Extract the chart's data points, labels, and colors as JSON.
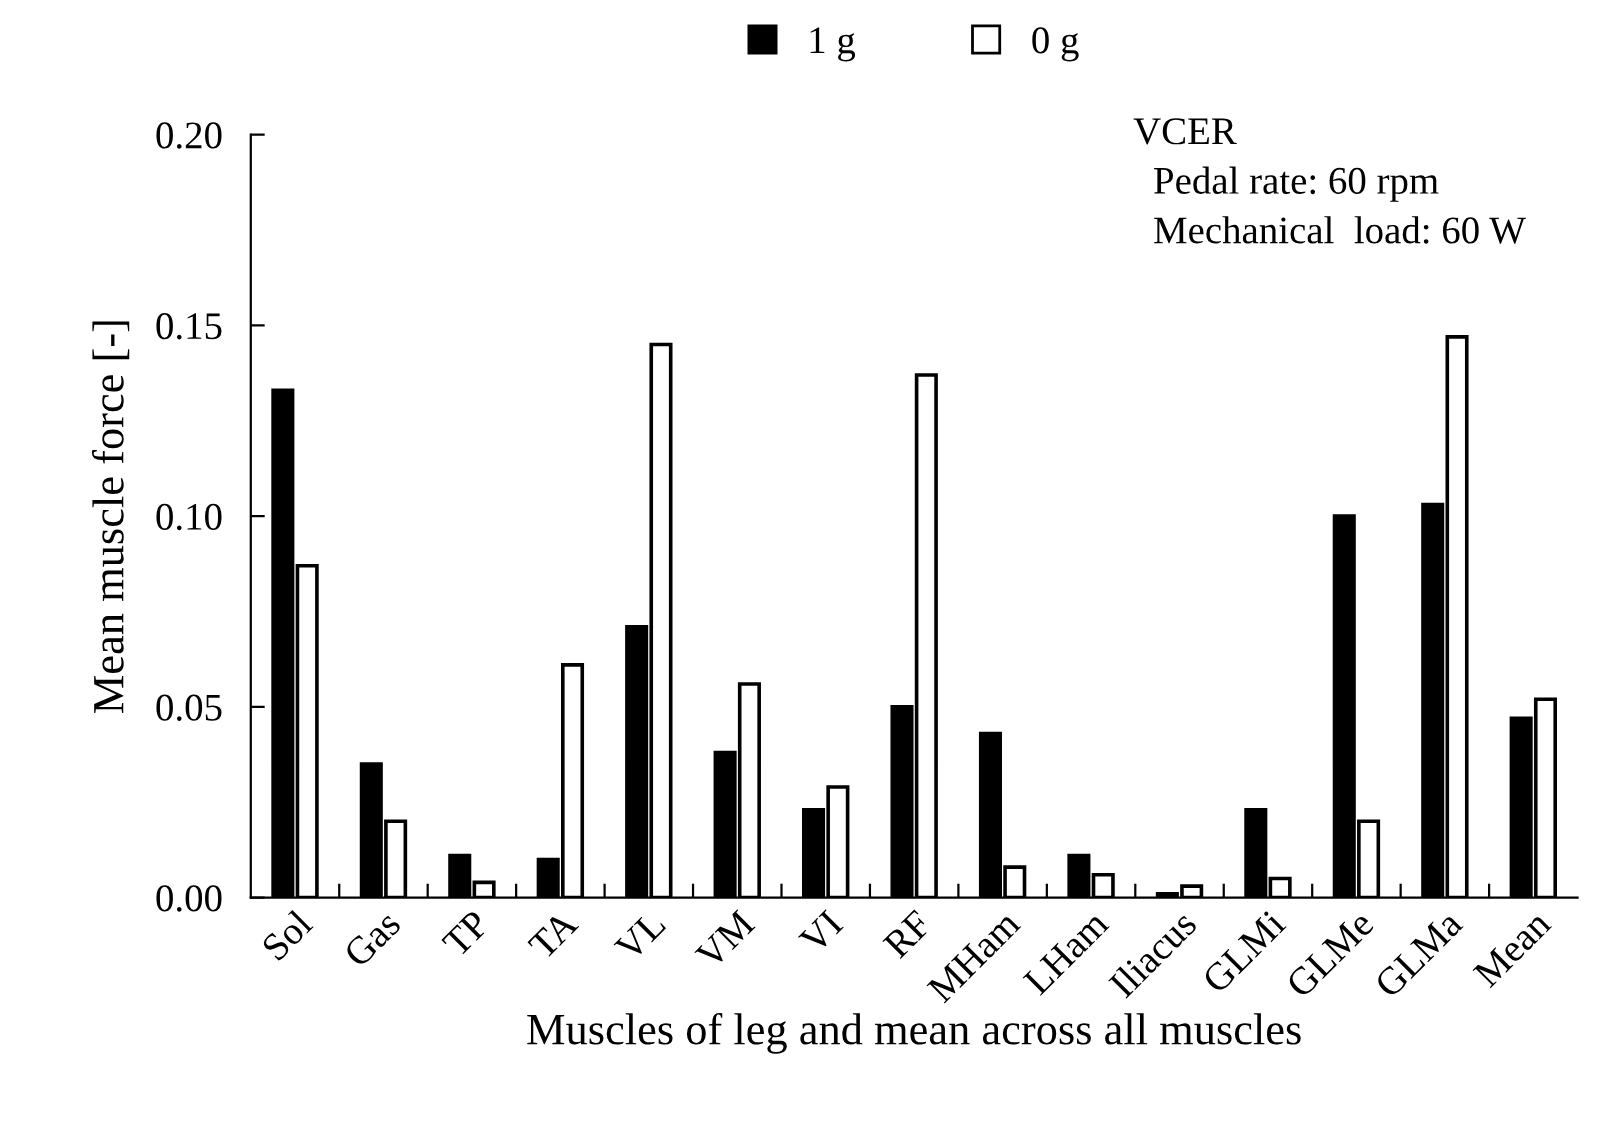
{
  "chart_data": {
    "type": "bar",
    "xlabel": "Muscles of leg and mean across all muscles",
    "ylabel": "Mean muscle force [-]",
    "categories": [
      "Sol",
      "Gas",
      "TP",
      "TA",
      "VL",
      "VM",
      "VI",
      "RF",
      "MHam",
      "LHam",
      "Iliacus",
      "GLMi",
      "GLMe",
      "GLMa",
      "Mean"
    ],
    "series": [
      {
        "name": "1 g",
        "color": "#000000",
        "values": [
          0.133,
          0.035,
          0.011,
          0.01,
          0.071,
          0.038,
          0.023,
          0.05,
          0.043,
          0.011,
          0.001,
          0.023,
          0.1,
          0.103,
          0.047
        ]
      },
      {
        "name": "0 g",
        "color": "#ffffff",
        "values": [
          0.087,
          0.02,
          0.004,
          0.061,
          0.145,
          0.056,
          0.029,
          0.137,
          0.008,
          0.006,
          0.003,
          0.005,
          0.02,
          0.147,
          0.052
        ]
      }
    ],
    "ylim": [
      0,
      0.2
    ],
    "yticks": [
      {
        "value": 0,
        "label": "0.00"
      },
      {
        "value": 0.05,
        "label": "0.05"
      },
      {
        "value": 0.1,
        "label": "0.10"
      },
      {
        "value": 0.15,
        "label": "0.15"
      },
      {
        "value": 0.2,
        "label": "0.20"
      }
    ],
    "annotations": [
      "VCER",
      "Pedal rate: 60 rpm",
      "Mechanical  load: 60 W"
    ],
    "legend": "top",
    "grid": false
  }
}
